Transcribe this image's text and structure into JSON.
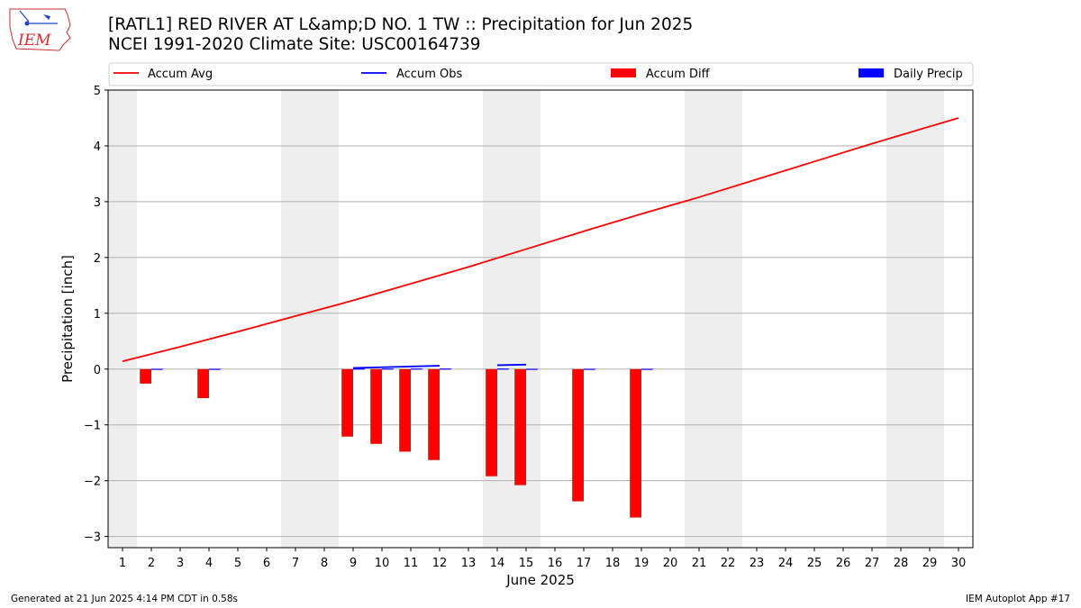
{
  "header": {
    "logo_text": "IEM",
    "title_line1": "[RATL1] RED RIVER AT L&amp;D NO. 1 TW :: Precipitation for Jun 2025",
    "title_line2": "NCEI 1991-2020 Climate Site: USC00164739"
  },
  "footer": {
    "generated": "Generated at 21 Jun 2025 4:14 PM CDT in 0.58s",
    "app": "IEM Autoplot App #17"
  },
  "colors": {
    "accum_avg": "#ff0000",
    "accum_obs": "#0000ff",
    "accum_diff": "#ff0000",
    "daily_precip": "#0000ff",
    "weekend_shade": "#eeeeee",
    "grid": "#b0b0b0"
  },
  "chart_data": {
    "type": "bar",
    "xlabel": "June 2025",
    "ylabel": "Precipitation [inch]",
    "xlim": [
      0.5,
      30.5
    ],
    "ylim": [
      -3.2,
      5.0
    ],
    "grid": "horizontal",
    "legend_placement": "top",
    "x_ticks": [
      1,
      2,
      3,
      4,
      5,
      6,
      7,
      8,
      9,
      10,
      11,
      12,
      13,
      14,
      15,
      16,
      17,
      18,
      19,
      20,
      21,
      22,
      23,
      24,
      25,
      26,
      27,
      28,
      29,
      30
    ],
    "y_ticks": [
      5,
      4,
      3,
      2,
      1,
      0,
      -1,
      -2,
      -3
    ],
    "y_tick_labels": [
      "5",
      "4",
      "3",
      "2",
      "1",
      "0",
      "−1",
      "−2",
      "−3"
    ],
    "weekend_spans": [
      [
        1,
        1
      ],
      [
        7,
        8
      ],
      [
        14,
        15
      ],
      [
        21,
        22
      ],
      [
        28,
        29
      ]
    ],
    "legend": [
      "Accum Avg",
      "Accum Obs",
      "Accum Diff",
      "Daily Precip"
    ],
    "accum_avg": {
      "days": [
        1,
        3,
        5,
        7,
        9,
        11,
        13,
        15,
        17,
        19,
        21,
        23,
        25,
        27,
        30
      ],
      "values": [
        0.14,
        0.4,
        0.67,
        0.95,
        1.23,
        1.53,
        1.83,
        2.15,
        2.47,
        2.78,
        3.08,
        3.4,
        3.72,
        4.04,
        4.5
      ]
    },
    "accum_obs": [
      {
        "days": [
          9,
          12
        ],
        "values": [
          0.02,
          0.06
        ]
      },
      {
        "days": [
          14,
          15
        ],
        "values": [
          0.07,
          0.08
        ]
      }
    ],
    "accum_diff": {
      "days": [
        2,
        4,
        9,
        10,
        11,
        12,
        14,
        15,
        17,
        19
      ],
      "values": [
        -0.26,
        -0.52,
        -1.21,
        -1.34,
        -1.48,
        -1.63,
        -1.92,
        -2.08,
        -2.37,
        -2.66
      ]
    },
    "daily_precip": {
      "days": [
        2,
        4,
        9,
        10,
        11,
        12,
        14,
        15,
        17,
        19
      ],
      "values": [
        0.005,
        0.005,
        0.01,
        0.01,
        0.01,
        0.01,
        0.01,
        0.005,
        0.005,
        0.005
      ]
    }
  }
}
